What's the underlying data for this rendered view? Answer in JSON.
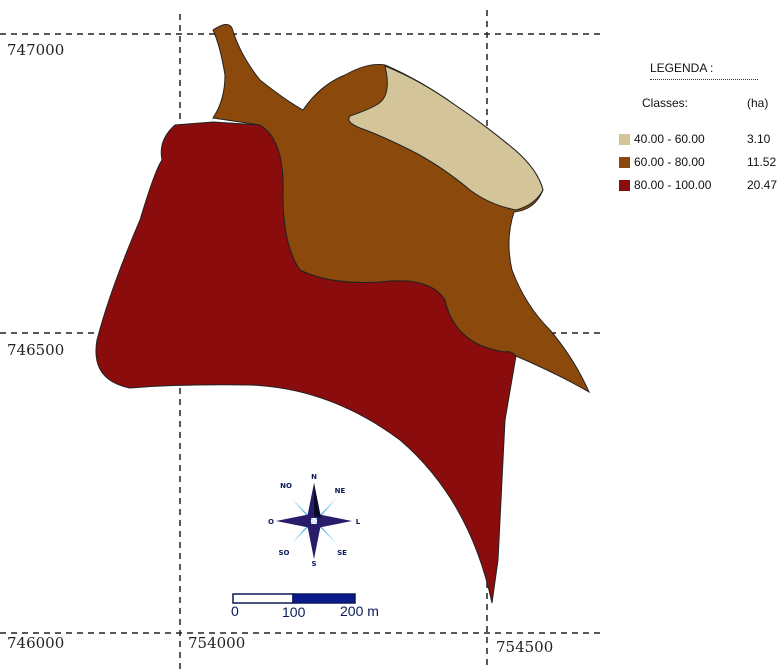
{
  "map": {
    "coordinates": {
      "y_top": "747000",
      "y_mid": "746500",
      "y_bottom": "746000",
      "x_left": "754000",
      "x_right": "754500"
    },
    "legend": {
      "title": "LEGENDA :",
      "header_classes": "Classes:",
      "header_area": "(ha)",
      "classes": [
        {
          "label": "40.00 - 60.00",
          "area": "3.10",
          "color": "#d4c49a"
        },
        {
          "label": "60.00 - 80.00",
          "area": "11.52",
          "color": "#8b4a0c"
        },
        {
          "label": "80.00 - 100.00",
          "area": "20.47",
          "color": "#8a0c0c"
        }
      ]
    },
    "compass": {
      "north": "N",
      "northeast": "NE",
      "east": "L",
      "southeast": "SE",
      "south": "S",
      "southwest": "SO",
      "west": "O",
      "northwest": "NO"
    },
    "scale_bar": {
      "label_0": "0",
      "label_100": "100",
      "label_200": "200 m"
    }
  }
}
